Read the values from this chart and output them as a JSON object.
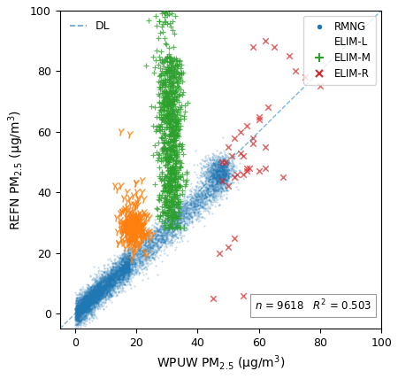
{
  "title": "",
  "xlabel": "WPUW PM$_{2.5}$ (μg/m$^3$)",
  "ylabel": "REFN PM$_{2.5}$ (μg/m$^3$)",
  "xlim": [
    -5,
    100
  ],
  "ylim": [
    -5,
    100
  ],
  "xticks": [
    0,
    20,
    40,
    60,
    80,
    100
  ],
  "yticks": [
    0,
    20,
    40,
    60,
    80,
    100
  ],
  "annotation": "$n$ = 9618   $R^2$ = 0.503",
  "dl_label": "DL",
  "rmng_color": "#1f77b4",
  "eliml_color": "#ff7f0e",
  "elimm_color": "#2ca02c",
  "elimr_color": "#d62728",
  "dl_color": "#5ba4d4",
  "background_color": "#ffffff"
}
